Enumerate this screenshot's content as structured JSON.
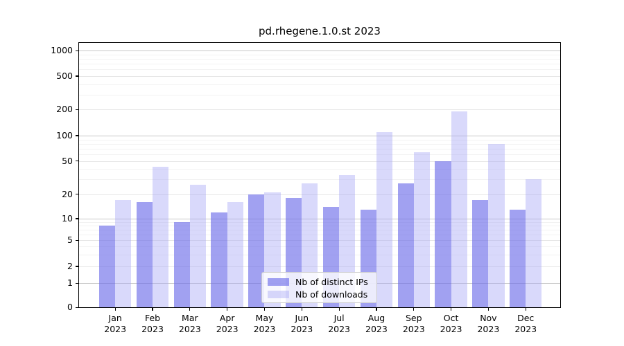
{
  "title": "pd.rhegene.1.0.st 2023",
  "chart_data": {
    "type": "bar",
    "title": "pd.rhegene.1.0.st 2023",
    "categories": [
      "Jan 2023",
      "Feb 2023",
      "Mar 2023",
      "Apr 2023",
      "May 2023",
      "Jun 2023",
      "Jul 2023",
      "Aug 2023",
      "Sep 2023",
      "Oct 2023",
      "Nov 2023",
      "Dec 2023"
    ],
    "x_tick_months": [
      "Jan",
      "Feb",
      "Mar",
      "Apr",
      "May",
      "Jun",
      "Jul",
      "Aug",
      "Sep",
      "Oct",
      "Nov",
      "Dec"
    ],
    "x_tick_year": "2023",
    "series": [
      {
        "name": "Nb of distinct IPs",
        "color": "rgba(108,108,233,0.64)",
        "color_hex": "#a2a2f2",
        "values": [
          8,
          16,
          9,
          12,
          20,
          18,
          14,
          13,
          27,
          50,
          17,
          13
        ]
      },
      {
        "name": "Nb of downloads",
        "color": "rgba(165,165,245,0.42)",
        "color_hex": "#dbdbfb",
        "values": [
          17,
          43,
          26,
          16,
          21,
          27,
          34,
          110,
          63,
          190,
          80,
          30
        ]
      }
    ],
    "y_ticks": [
      0,
      1,
      2,
      5,
      10,
      20,
      50,
      100,
      200,
      500,
      1000
    ],
    "y_scale": "symlog",
    "ylim": [
      0,
      1300
    ],
    "xlabel": "",
    "ylabel": "",
    "grid": true,
    "legend_position": "bottom-center"
  }
}
